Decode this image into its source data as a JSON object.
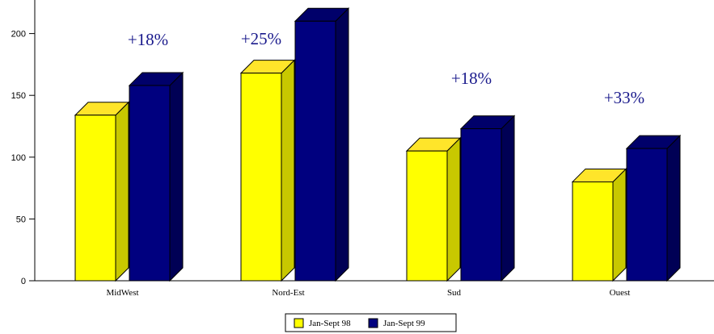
{
  "colors": {
    "series1_front": "#ffff00",
    "series1_top": "#ffe52a",
    "series1_side": "#c8c800",
    "series2_front": "#00007f",
    "series2_top": "#00006a",
    "series2_side": "#000055",
    "annotation": "#1a1a8c"
  },
  "chart_data": {
    "type": "bar",
    "three_d": true,
    "categories": [
      "MidWest",
      "Nord-Est",
      "Sud",
      "Ouest"
    ],
    "series": [
      {
        "name": "Jan-Sept 98",
        "values": [
          134,
          168,
          105,
          80
        ]
      },
      {
        "name": "Jan-Sept 99",
        "values": [
          158,
          210,
          123,
          107
        ]
      }
    ],
    "ylim": [
      0,
      220
    ],
    "yticks": [
      0,
      50,
      100,
      150,
      200
    ],
    "grid": false,
    "legend_position": "bottom-center",
    "annotations": [
      {
        "category": "MidWest",
        "text": "+18%"
      },
      {
        "category": "Nord-Est",
        "text": "+25%"
      },
      {
        "category": "Sud",
        "text": "+18%"
      },
      {
        "category": "Ouest",
        "text": "+33%"
      }
    ]
  }
}
